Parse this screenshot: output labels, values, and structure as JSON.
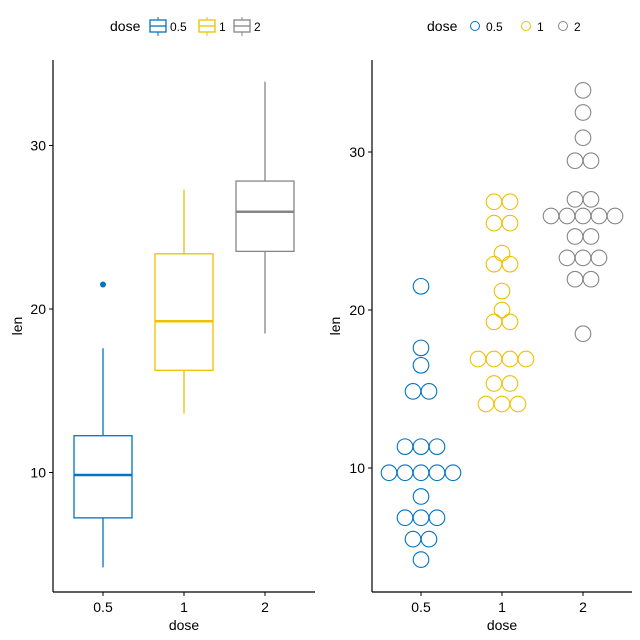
{
  "chart_data": [
    {
      "type": "box",
      "xlabel": "dose",
      "ylabel": "len",
      "legend": {
        "title": "dose",
        "position": "top",
        "entries": [
          "0.5",
          "1",
          "2"
        ]
      },
      "categories": [
        "0.5",
        "1",
        "2"
      ],
      "colors": [
        "#0073C2",
        "#EFC000",
        "#868686"
      ],
      "yticks": [
        10,
        20,
        30
      ],
      "ylim": [
        2.7,
        35.4
      ],
      "boxes": [
        {
          "category": "0.5",
          "min": 4.2,
          "q1": 7.225,
          "median": 9.85,
          "q3": 12.25,
          "max": 17.6,
          "outliers": [
            21.5
          ]
        },
        {
          "category": "1",
          "min": 13.6,
          "q1": 16.25,
          "median": 19.25,
          "q3": 23.375,
          "max": 27.3,
          "outliers": []
        },
        {
          "category": "2",
          "min": 18.5,
          "q1": 23.525,
          "median": 25.95,
          "q3": 27.825,
          "max": 33.9,
          "outliers": []
        }
      ]
    },
    {
      "type": "dotplot",
      "xlabel": "dose",
      "ylabel": "len",
      "legend": {
        "title": "dose",
        "position": "top",
        "entries": [
          "0.5",
          "1",
          "2"
        ]
      },
      "categories": [
        "0.5",
        "1",
        "2"
      ],
      "colors": [
        "#0073C2",
        "#EFC000",
        "#868686"
      ],
      "yticks": [
        10,
        20,
        30
      ],
      "ylim": [
        3,
        35
      ],
      "binwidth": 1,
      "values": [
        [
          4.2,
          11.5,
          7.3,
          5.8,
          6.4,
          10,
          11.2,
          11.2,
          5.2,
          7,
          15.2,
          21.5,
          17.6,
          9.7,
          14.5,
          10,
          8.2,
          9.4,
          16.5,
          9.7
        ],
        [
          16.5,
          16.5,
          15.2,
          17.3,
          22.5,
          17.3,
          13.6,
          14.5,
          18.8,
          15.5,
          19.7,
          23.3,
          23.6,
          26.4,
          20,
          25.2,
          25.8,
          21.2,
          14.5,
          27.3
        ],
        [
          23.6,
          18.5,
          33.9,
          25.5,
          26.4,
          32.5,
          26.7,
          21.5,
          23.3,
          29.5,
          25.5,
          26.4,
          22.4,
          24.5,
          24.8,
          30.9,
          26.4,
          27.3,
          29.4,
          23
        ]
      ]
    }
  ]
}
